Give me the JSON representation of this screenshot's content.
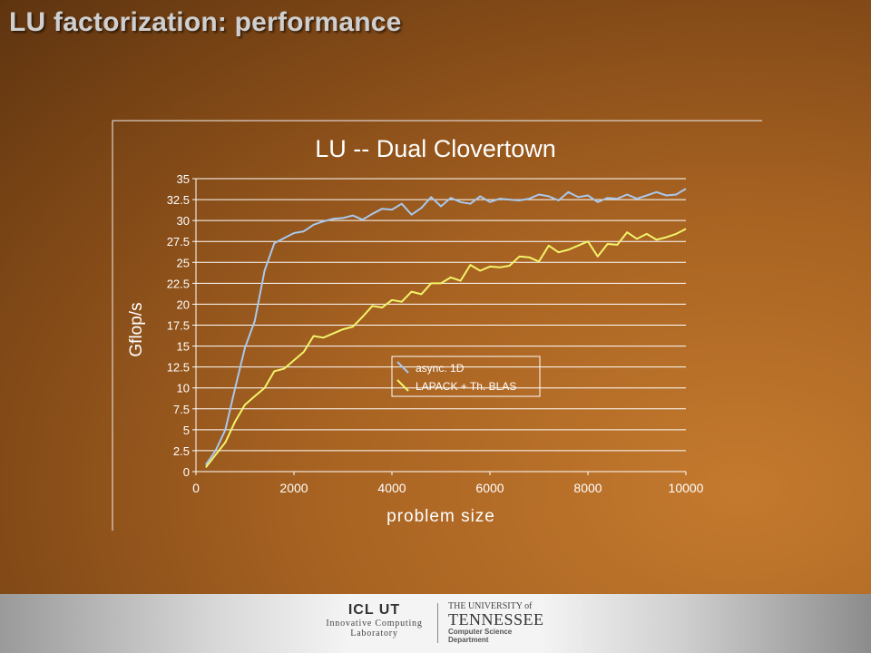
{
  "slide": {
    "title": "LU factorization: performance"
  },
  "footer": {
    "icl_logo": "ICL UT",
    "icl_name_line1": "Innovative Computing",
    "icl_name_line2": "Laboratory",
    "ut_prefix": "THE UNIVERSITY of",
    "ut_name": "TENNESSEE",
    "ut_dept": "Computer Science Department"
  },
  "chart_data": {
    "type": "line",
    "title": "LU -- Dual Clovertown",
    "xlabel": "problem size",
    "ylabel": "Gflop/s",
    "xlim": [
      0,
      10000
    ],
    "ylim": [
      0,
      35
    ],
    "xticks": [
      0,
      2000,
      4000,
      6000,
      8000,
      10000
    ],
    "yticks": [
      0,
      2.5,
      5,
      7.5,
      10,
      12.5,
      15,
      17.5,
      20,
      22.5,
      25,
      27.5,
      30,
      32.5,
      35
    ],
    "grid": "horizontal",
    "legend_position": "center",
    "series": [
      {
        "name": "async. 1D",
        "color": "#a9c8ee",
        "x": [
          200,
          400,
          600,
          800,
          1000,
          1200,
          1400,
          1600,
          1800,
          2000,
          2200,
          2400,
          2600,
          2800,
          3000,
          3200,
          3400,
          3600,
          3800,
          4000,
          4200,
          4400,
          4600,
          4800,
          5000,
          5200,
          5400,
          5600,
          5800,
          6000,
          6200,
          6400,
          6600,
          6800,
          7000,
          7200,
          7400,
          7600,
          7800,
          8000,
          8200,
          8400,
          8600,
          8800,
          9000,
          9200,
          9400,
          9600,
          9800,
          10000
        ],
        "y": [
          0.8,
          2.5,
          5.0,
          10.0,
          14.8,
          18.0,
          24.0,
          27.3,
          27.9,
          28.5,
          28.7,
          29.5,
          29.9,
          30.2,
          30.3,
          30.6,
          30.1,
          30.8,
          31.4,
          31.3,
          32.0,
          30.7,
          31.5,
          32.8,
          31.7,
          32.7,
          32.2,
          32.0,
          32.9,
          32.2,
          32.6,
          32.5,
          32.4,
          32.6,
          33.1,
          32.9,
          32.4,
          33.4,
          32.8,
          33.0,
          32.2,
          32.7,
          32.6,
          33.1,
          32.6,
          33.0,
          33.4,
          33.0,
          33.1,
          33.8
        ]
      },
      {
        "name": "LAPACK + Th. BLAS",
        "color": "#f3f46a",
        "x": [
          200,
          400,
          600,
          800,
          1000,
          1200,
          1400,
          1600,
          1800,
          2000,
          2200,
          2400,
          2600,
          2800,
          3000,
          3200,
          3400,
          3600,
          3800,
          4000,
          4200,
          4400,
          4600,
          4800,
          5000,
          5200,
          5400,
          5600,
          5800,
          6000,
          6200,
          6400,
          6600,
          6800,
          7000,
          7200,
          7400,
          7600,
          7800,
          8000,
          8200,
          8400,
          8600,
          8800,
          9000,
          9200,
          9400,
          9600,
          9800,
          10000
        ],
        "y": [
          0.5,
          2.0,
          3.5,
          6.0,
          8.0,
          9.0,
          10.0,
          12.0,
          12.3,
          13.3,
          14.3,
          16.2,
          16.0,
          16.5,
          17.0,
          17.3,
          18.5,
          19.8,
          19.6,
          20.5,
          20.3,
          21.5,
          21.2,
          22.5,
          22.5,
          23.2,
          22.8,
          24.7,
          24.0,
          24.5,
          24.4,
          24.6,
          25.7,
          25.6,
          25.1,
          27.0,
          26.2,
          26.5,
          27.0,
          27.5,
          25.7,
          27.2,
          27.1,
          28.6,
          27.8,
          28.4,
          27.7,
          28.0,
          28.4,
          29.0
        ]
      }
    ]
  }
}
